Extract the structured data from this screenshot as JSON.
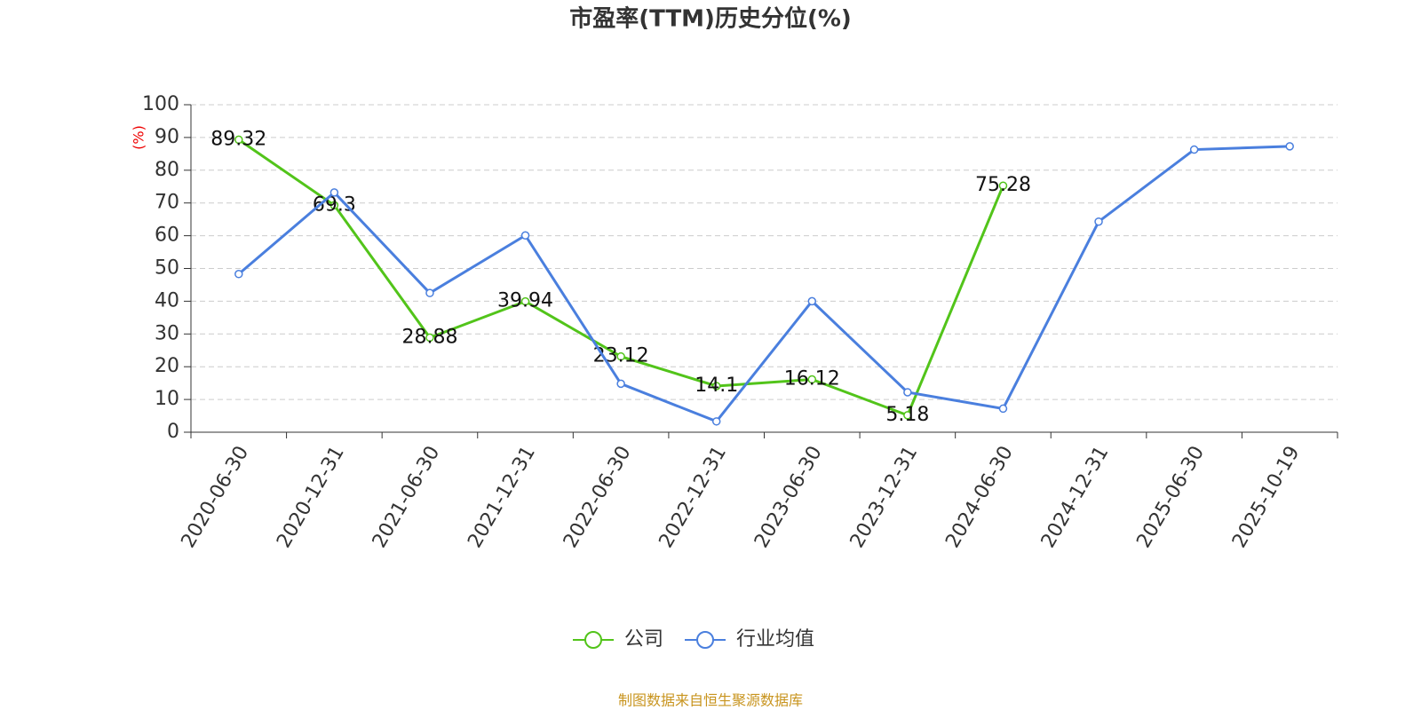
{
  "chart_data": {
    "type": "line",
    "title": "市盈率(TTM)历史分位(%)",
    "y_label": "(%)",
    "source": "制图数据来自恒生聚源数据库",
    "categories": [
      "2020-06-30",
      "2020-12-31",
      "2021-06-30",
      "2021-12-31",
      "2022-06-30",
      "2022-12-31",
      "2023-06-30",
      "2023-12-31",
      "2024-06-30",
      "2024-12-31",
      "2025-06-30",
      "2025-10-19"
    ],
    "series": [
      {
        "name": "公司",
        "color": "#52c41a",
        "data_labels": true,
        "values": [
          89.32,
          69.3,
          28.88,
          39.94,
          23.12,
          14.1,
          16.12,
          5.18,
          75.28,
          null,
          null,
          null
        ]
      },
      {
        "name": "行业均值",
        "color": "#4a7fde",
        "data_labels": false,
        "values": [
          48.3,
          73.2,
          42.5,
          60.1,
          14.8,
          3.3,
          40.0,
          12.2,
          7.2,
          64.3,
          86.3,
          87.3
        ]
      }
    ],
    "ylim": [
      0,
      100
    ],
    "yticks": [
      0,
      10,
      20,
      30,
      40,
      50,
      60,
      70,
      80,
      90,
      100
    ],
    "grid": true
  }
}
